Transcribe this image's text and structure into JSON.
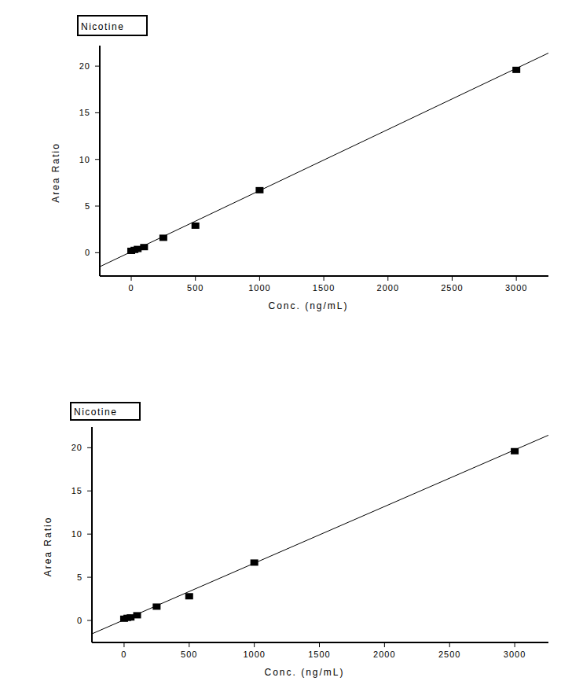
{
  "chart_data": [
    {
      "type": "scatter",
      "title": "Nicotine",
      "x_label": "Conc. (ng/mL)",
      "y_label": "Area Ratio",
      "xlim": [
        -245,
        3250
      ],
      "ylim": [
        -2.5,
        22.2
      ],
      "xticks": [
        0,
        500,
        1000,
        1500,
        2000,
        2500,
        3000
      ],
      "yticks": [
        0,
        5,
        10,
        15,
        20
      ],
      "grid": false,
      "series": [
        {
          "type": "scatter",
          "marker": "square",
          "color": "#000000",
          "x": [
            0,
            25,
            50,
            100,
            250,
            500,
            1000,
            3000
          ],
          "values": [
            0.2,
            0.3,
            0.4,
            0.6,
            1.6,
            2.9,
            6.7,
            19.6
          ]
        },
        {
          "type": "line",
          "line_style": "solid",
          "color": "#000000",
          "x": [
            -245,
            3250
          ],
          "values": [
            -1.5,
            21.4
          ]
        }
      ]
    },
    {
      "type": "scatter",
      "title": "Nicotine",
      "x_label": "Conc. (ng/mL)",
      "y_label": "Area Ratio",
      "xlim": [
        -247,
        3259
      ],
      "ylim": [
        -2.55,
        22.4
      ],
      "xticks": [
        0,
        500,
        1000,
        1500,
        2000,
        2500,
        3000
      ],
      "yticks": [
        0,
        5,
        10,
        15,
        20
      ],
      "grid": false,
      "series": [
        {
          "type": "scatter",
          "marker": "square",
          "color": "#000000",
          "x": [
            0,
            25,
            50,
            100,
            250,
            500,
            1000,
            3000
          ],
          "values": [
            0.2,
            0.3,
            0.35,
            0.6,
            1.6,
            2.8,
            6.7,
            19.6
          ]
        },
        {
          "type": "line",
          "line_style": "solid",
          "color": "#000000",
          "x": [
            -247,
            3259
          ],
          "values": [
            -1.55,
            21.45
          ]
        }
      ]
    }
  ]
}
